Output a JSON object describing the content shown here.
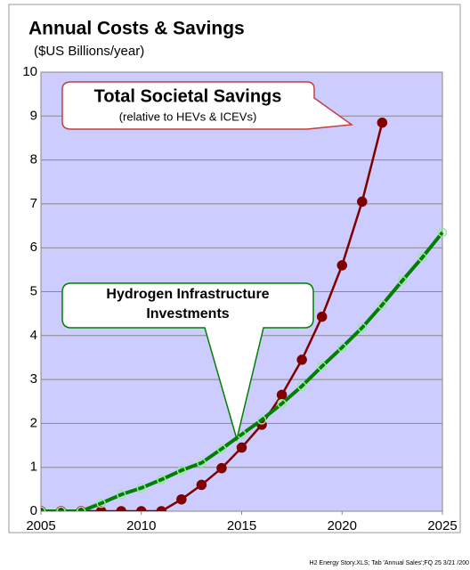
{
  "chart_data": {
    "type": "line",
    "title": "Annual Costs & Savings",
    "subtitle": "($US Billions/year)",
    "x": [
      2005,
      2006,
      2007,
      2008,
      2009,
      2010,
      2011,
      2012,
      2013,
      2014,
      2015,
      2016,
      2017,
      2018,
      2019,
      2020,
      2021,
      2022,
      2023,
      2024,
      2025
    ],
    "series": [
      {
        "name": "Total Societal Savings",
        "color": "#800000",
        "marker": "filled",
        "values": [
          0,
          0,
          0,
          0,
          0,
          0,
          0,
          0.27,
          0.6,
          0.98,
          1.45,
          1.97,
          2.65,
          3.45,
          4.43,
          5.6,
          7.05,
          8.85,
          null,
          null,
          null
        ]
      },
      {
        "name": "Hydrogen Infrastructure Investments",
        "color": "#008000",
        "marker": "hollow",
        "values": [
          0,
          0,
          0,
          0.18,
          0.38,
          0.53,
          0.72,
          0.93,
          1.1,
          1.42,
          1.75,
          2.08,
          2.45,
          2.85,
          3.3,
          3.73,
          4.18,
          4.7,
          5.25,
          5.78,
          6.35
        ]
      }
    ],
    "annotation": "(relative to HEVs & ICEVs)",
    "xlim": [
      2005,
      2025
    ],
    "xticks": [
      2005,
      2010,
      2015,
      2020,
      2025
    ],
    "ylim": [
      0,
      10
    ],
    "yticks": [
      0,
      1,
      2,
      3,
      4,
      5,
      6,
      7,
      8,
      9,
      10
    ],
    "grid": true,
    "footer": "H2 Energy Story.XLS; Tab 'Annual Sales';FQ 25 3/21 /200"
  }
}
